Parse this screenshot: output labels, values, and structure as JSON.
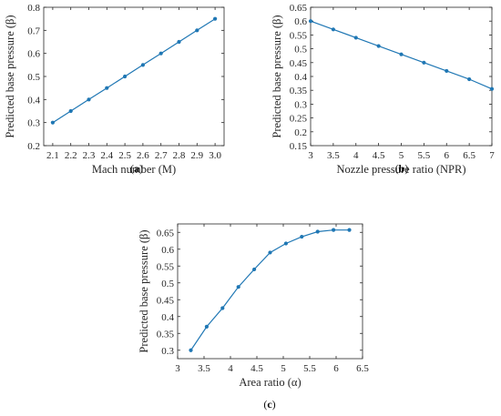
{
  "chart_data": [
    {
      "type": "line",
      "caption": "a",
      "xlabel": "Mach number (M)",
      "ylabel": "Predicted base pressure (β)",
      "xlim": [
        2.05,
        3.05
      ],
      "ylim": [
        0.2,
        0.8
      ],
      "xticks": [
        "2.1",
        "2.2",
        "2.3",
        "2.4",
        "2.5",
        "2.6",
        "2.7",
        "2.8",
        "2.9",
        "3.0"
      ],
      "yticks": [
        "0.2",
        "0.3",
        "0.4",
        "0.5",
        "0.6",
        "0.7",
        "0.8"
      ],
      "grid": false,
      "color": "#1f77b4",
      "x": [
        2.1,
        2.2,
        2.3,
        2.4,
        2.5,
        2.6,
        2.7,
        2.8,
        2.9,
        3.0
      ],
      "y": [
        0.3,
        0.35,
        0.4,
        0.45,
        0.5,
        0.55,
        0.6,
        0.65,
        0.7,
        0.75
      ]
    },
    {
      "type": "line",
      "caption": "b",
      "xlabel": "Nozzle pressure ratio (NPR)",
      "ylabel": "Predicted base pressure (β)",
      "xlim": [
        3,
        7
      ],
      "ylim": [
        0.15,
        0.65
      ],
      "xticks": [
        "3",
        "3.5",
        "4",
        "4.5",
        "5",
        "5.5",
        "6",
        "6.5",
        "7"
      ],
      "yticks": [
        "0.15",
        "0.2",
        "0.25",
        "0.3",
        "0.35",
        "0.4",
        "0.45",
        "0.5",
        "0.55",
        "0.6",
        "0.65"
      ],
      "grid": false,
      "color": "#1f77b4",
      "x": [
        3.0,
        3.5,
        4.0,
        4.5,
        5.0,
        5.5,
        6.0,
        6.5,
        7.0
      ],
      "y": [
        0.6,
        0.57,
        0.54,
        0.51,
        0.48,
        0.45,
        0.42,
        0.39,
        0.355
      ]
    },
    {
      "type": "line",
      "caption": "c",
      "xlabel": "Area ratio (α)",
      "ylabel": "Predicted base pressure (β)",
      "xlim": [
        3,
        6.5
      ],
      "ylim": [
        0.275,
        0.675
      ],
      "xticks": [
        "3",
        "3.5",
        "4",
        "4.5",
        "5",
        "5.5",
        "6",
        "6.5"
      ],
      "yticks": [
        "0.3",
        "0.35",
        "0.4",
        "0.45",
        "0.5",
        "0.55",
        "0.6",
        "0.65"
      ],
      "grid": false,
      "color": "#1f77b4",
      "x": [
        3.25,
        3.55,
        3.85,
        4.15,
        4.45,
        4.75,
        5.05,
        5.35,
        5.65,
        5.95,
        6.25
      ],
      "y": [
        0.3,
        0.37,
        0.425,
        0.488,
        0.54,
        0.59,
        0.617,
        0.637,
        0.652,
        0.657,
        0.657
      ]
    }
  ]
}
